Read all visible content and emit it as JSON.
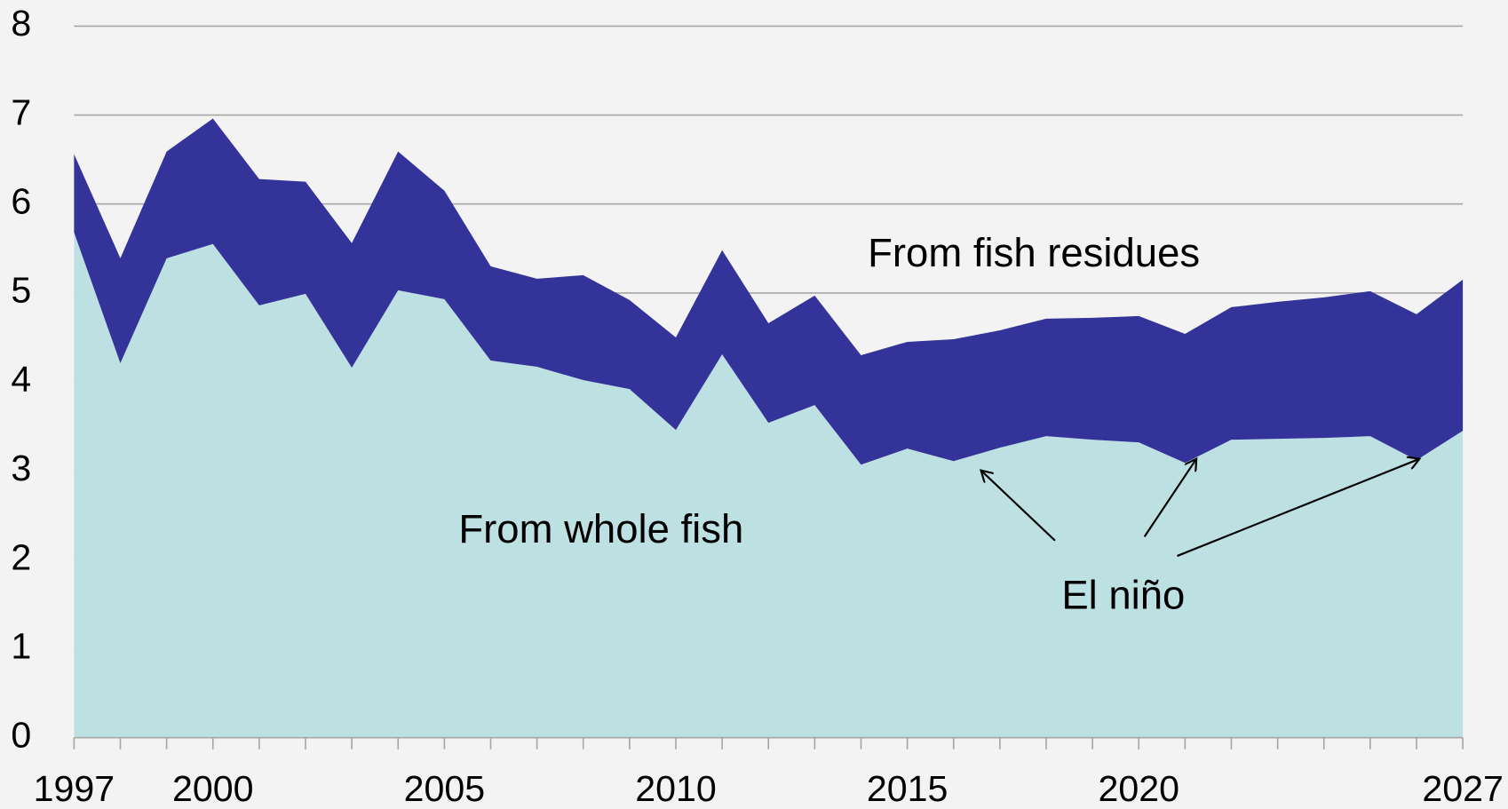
{
  "chart_data": {
    "type": "stacked_area",
    "x": [
      1997,
      1998,
      1999,
      2000,
      2001,
      2002,
      2003,
      2004,
      2005,
      2006,
      2007,
      2008,
      2009,
      2010,
      2011,
      2012,
      2013,
      2014,
      2015,
      2016,
      2017,
      2018,
      2019,
      2020,
      2021,
      2022,
      2023,
      2024,
      2025,
      2026,
      2027
    ],
    "series": [
      {
        "name": "From whole fish",
        "color": "#bde0e3",
        "values": [
          5.68,
          4.21,
          5.39,
          5.55,
          4.86,
          4.99,
          4.16,
          5.03,
          4.93,
          4.24,
          4.17,
          4.02,
          3.92,
          3.46,
          4.31,
          3.54,
          3.74,
          3.07,
          3.25,
          3.11,
          3.26,
          3.39,
          3.35,
          3.32,
          3.09,
          3.35,
          3.36,
          3.37,
          3.39,
          3.12,
          3.45
        ]
      },
      {
        "name": "From fish residues",
        "color": "#333399",
        "values": [
          0.88,
          1.18,
          1.2,
          1.41,
          1.42,
          1.26,
          1.4,
          1.56,
          1.22,
          1.06,
          0.99,
          1.18,
          1.0,
          1.04,
          1.17,
          1.12,
          1.23,
          1.23,
          1.2,
          1.37,
          1.32,
          1.32,
          1.37,
          1.42,
          1.45,
          1.49,
          1.54,
          1.58,
          1.63,
          1.64,
          1.7
        ]
      }
    ],
    "annotations": [
      "El niño"
    ],
    "xlim": [
      1997,
      2027
    ],
    "xticks": [
      1997,
      2000,
      2005,
      2010,
      2015,
      2020,
      2027
    ],
    "ylim": [
      0,
      8
    ],
    "yticks": [
      0,
      1,
      2,
      3,
      4,
      5,
      6,
      7,
      8
    ],
    "grid": true
  }
}
